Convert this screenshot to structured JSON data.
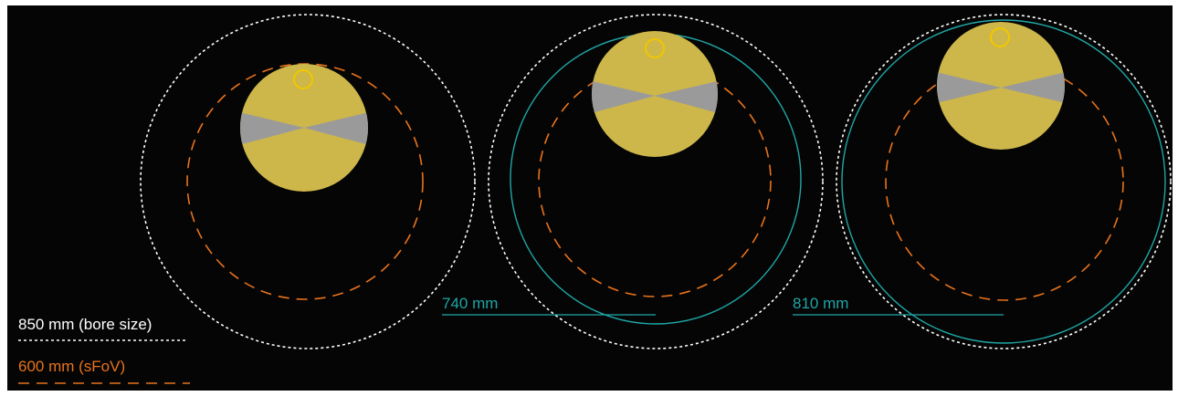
{
  "legend": {
    "bore_label": "850 mm (bore size)",
    "sfov_label": "600 mm (sFoV)"
  },
  "panels": [
    {
      "id": "panel-1",
      "dimension_label": ""
    },
    {
      "id": "panel-2",
      "dimension_label": "740 mm"
    },
    {
      "id": "panel-3",
      "dimension_label": "810 mm"
    }
  ],
  "colors": {
    "background": "#050505",
    "bore_circle": "#ffffff",
    "sfov_circle": "#e8731c",
    "inner_bore": "#20a6a6",
    "phantom": "#cdb64a",
    "phantom_wedge": "#9a9a9a",
    "marker_ring": "#f0c800"
  }
}
